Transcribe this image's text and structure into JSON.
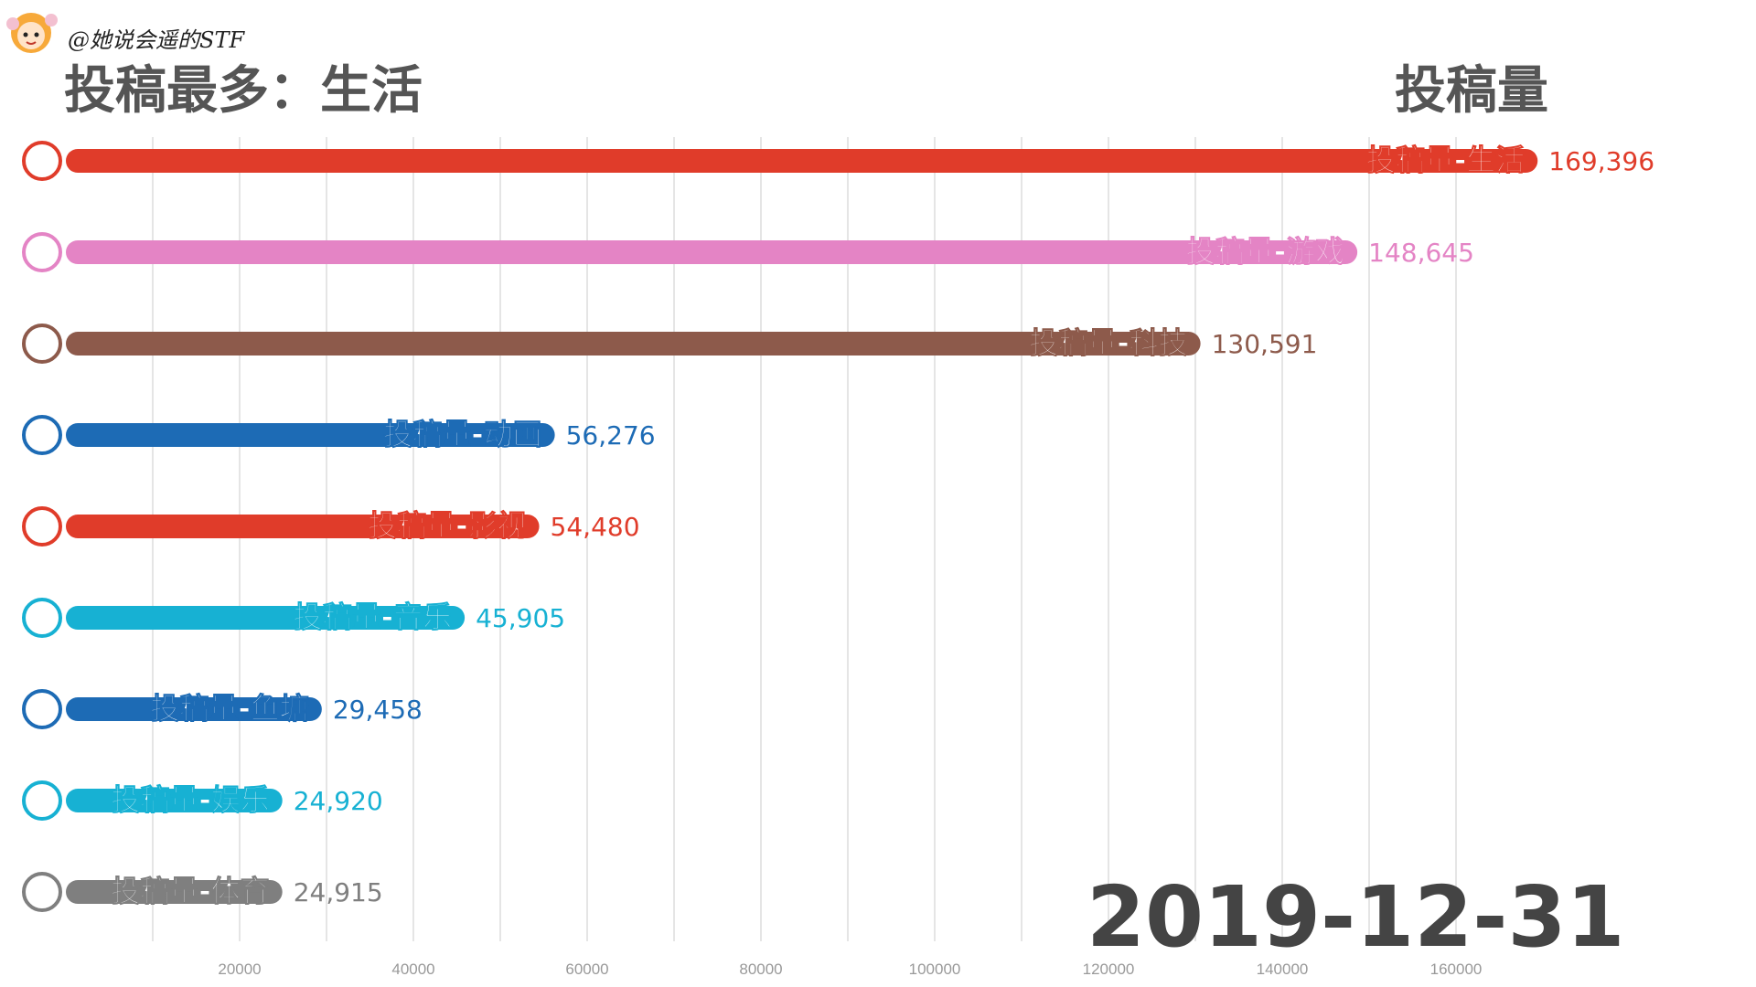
{
  "watermark": {
    "text": "@她说会遥的STF",
    "avatar_icon": "cartoon-girl-avatar-icon"
  },
  "title": "投稿最多：生活",
  "ylabel": "投稿量",
  "date": "2019-12-31",
  "chart_data": {
    "type": "bar",
    "orientation": "horizontal",
    "title": "投稿最多：生活",
    "ylabel": "投稿量",
    "xlim": [
      0,
      170000
    ],
    "x_ticks": [
      20000,
      40000,
      60000,
      80000,
      100000,
      120000,
      140000,
      160000
    ],
    "grid": true,
    "bars": [
      {
        "label": "投稿量-生活",
        "value": 169396,
        "value_label": "169,396",
        "color": "#e03c2a"
      },
      {
        "label": "投稿量-游戏",
        "value": 148645,
        "value_label": "148,645",
        "color": "#e484c5"
      },
      {
        "label": "投稿量-科技",
        "value": 130591,
        "value_label": "130,591",
        "color": "#8d5a4b"
      },
      {
        "label": "投稿量-动画",
        "value": 56276,
        "value_label": "56,276",
        "color": "#1d6bb5"
      },
      {
        "label": "投稿量-影视",
        "value": 54480,
        "value_label": "54,480",
        "color": "#e03c2a"
      },
      {
        "label": "投稿量-音乐",
        "value": 45905,
        "value_label": "45,905",
        "color": "#17b1d3"
      },
      {
        "label": "投稿量-鱼塘",
        "value": 29458,
        "value_label": "29,458",
        "color": "#1d6bb5"
      },
      {
        "label": "投稿量-娱乐",
        "value": 24920,
        "value_label": "24,920",
        "color": "#17b1d3"
      },
      {
        "label": "投稿量-体育",
        "value": 24915,
        "value_label": "24,915",
        "color": "#7f7f7f"
      }
    ]
  }
}
